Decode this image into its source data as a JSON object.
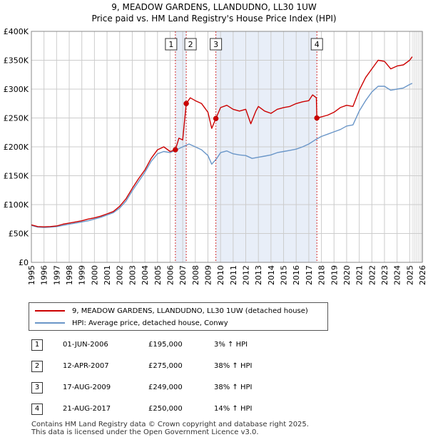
{
  "title_line1": "9, MEADOW GARDENS, LLANDUDNO, LL30 1UW",
  "title_line2": "Price paid vs. HM Land Registry's House Price Index (HPI)",
  "colors": {
    "property": "#cc0000",
    "hpi": "#6a96c8",
    "band": "#e8eef8",
    "grid": "#cccccc"
  },
  "chart_data": {
    "type": "line",
    "title": "Price paid vs. HM Land Registry's House Price Index (HPI)",
    "xlabel": "",
    "ylabel": "",
    "xlim": [
      1995,
      2026
    ],
    "ylim": [
      0,
      400000
    ],
    "y_ticks": [
      {
        "value": 0,
        "label": "£0"
      },
      {
        "value": 50000,
        "label": "£50K"
      },
      {
        "value": 100000,
        "label": "£100K"
      },
      {
        "value": 150000,
        "label": "£150K"
      },
      {
        "value": 200000,
        "label": "£200K"
      },
      {
        "value": 250000,
        "label": "£250K"
      },
      {
        "value": 300000,
        "label": "£300K"
      },
      {
        "value": 350000,
        "label": "£350K"
      },
      {
        "value": 400000,
        "label": "£400K"
      }
    ],
    "x_ticks": [
      "1995",
      "1996",
      "1997",
      "1998",
      "1999",
      "2000",
      "2001",
      "2002",
      "2003",
      "2004",
      "2005",
      "2006",
      "2007",
      "2008",
      "2009",
      "2010",
      "2011",
      "2012",
      "2013",
      "2014",
      "2015",
      "2016",
      "2017",
      "2018",
      "2019",
      "2020",
      "2021",
      "2022",
      "2023",
      "2024",
      "2025",
      "2026"
    ],
    "grid": true,
    "bands": [
      [
        2006.42,
        2007.28
      ],
      [
        2009.63,
        2017.64
      ]
    ],
    "series": [
      {
        "name": "9, MEADOW GARDENS, LLANDUDNO, LL30 1UW (detached house)",
        "color": "#cc0000",
        "points": [
          [
            1995,
            65000
          ],
          [
            1995.5,
            62000
          ],
          [
            1996,
            61500
          ],
          [
            1996.5,
            62000
          ],
          [
            1997,
            63000
          ],
          [
            1997.5,
            66000
          ],
          [
            1998,
            68000
          ],
          [
            1998.5,
            70000
          ],
          [
            1999,
            72000
          ],
          [
            1999.5,
            75000
          ],
          [
            2000,
            77000
          ],
          [
            2000.5,
            80000
          ],
          [
            2001,
            84000
          ],
          [
            2001.5,
            88000
          ],
          [
            2002,
            97000
          ],
          [
            2002.5,
            110000
          ],
          [
            2003,
            128000
          ],
          [
            2003.5,
            145000
          ],
          [
            2004,
            160000
          ],
          [
            2004.5,
            180000
          ],
          [
            2005,
            195000
          ],
          [
            2005.5,
            200000
          ],
          [
            2006,
            192000
          ],
          [
            2006.42,
            195000
          ],
          [
            2006.7,
            215000
          ],
          [
            2007,
            212000
          ],
          [
            2007.28,
            275000
          ],
          [
            2007.6,
            285000
          ],
          [
            2008,
            280000
          ],
          [
            2008.5,
            275000
          ],
          [
            2009,
            260000
          ],
          [
            2009.3,
            232000
          ],
          [
            2009.63,
            249000
          ],
          [
            2010,
            268000
          ],
          [
            2010.5,
            272000
          ],
          [
            2011,
            265000
          ],
          [
            2011.5,
            262000
          ],
          [
            2012,
            265000
          ],
          [
            2012.4,
            240000
          ],
          [
            2012.8,
            262000
          ],
          [
            2013,
            270000
          ],
          [
            2013.5,
            262000
          ],
          [
            2014,
            258000
          ],
          [
            2014.5,
            265000
          ],
          [
            2015,
            268000
          ],
          [
            2015.5,
            270000
          ],
          [
            2016,
            275000
          ],
          [
            2016.5,
            278000
          ],
          [
            2017,
            280000
          ],
          [
            2017.3,
            290000
          ],
          [
            2017.6,
            285000
          ],
          [
            2017.64,
            250000
          ],
          [
            2018,
            252000
          ],
          [
            2018.5,
            255000
          ],
          [
            2019,
            260000
          ],
          [
            2019.5,
            268000
          ],
          [
            2020,
            272000
          ],
          [
            2020.5,
            270000
          ],
          [
            2021,
            298000
          ],
          [
            2021.5,
            320000
          ],
          [
            2022,
            335000
          ],
          [
            2022.5,
            350000
          ],
          [
            2023,
            348000
          ],
          [
            2023.5,
            335000
          ],
          [
            2024,
            340000
          ],
          [
            2024.5,
            342000
          ],
          [
            2025,
            350000
          ],
          [
            2025.2,
            356000
          ]
        ]
      },
      {
        "name": "HPI: Average price, detached house, Conwy",
        "color": "#6a96c8",
        "points": [
          [
            1995,
            64000
          ],
          [
            1995.5,
            61000
          ],
          [
            1996,
            60500
          ],
          [
            1996.5,
            61000
          ],
          [
            1997,
            62000
          ],
          [
            1997.5,
            64000
          ],
          [
            1998,
            66000
          ],
          [
            1998.5,
            68000
          ],
          [
            1999,
            70000
          ],
          [
            1999.5,
            72000
          ],
          [
            2000,
            75000
          ],
          [
            2000.5,
            78000
          ],
          [
            2001,
            82000
          ],
          [
            2001.5,
            86000
          ],
          [
            2002,
            94000
          ],
          [
            2002.5,
            106000
          ],
          [
            2003,
            124000
          ],
          [
            2003.5,
            140000
          ],
          [
            2004,
            156000
          ],
          [
            2004.5,
            175000
          ],
          [
            2005,
            188000
          ],
          [
            2005.5,
            192000
          ],
          [
            2006,
            190000
          ],
          [
            2006.5,
            195000
          ],
          [
            2007,
            200000
          ],
          [
            2007.5,
            205000
          ],
          [
            2008,
            200000
          ],
          [
            2008.5,
            195000
          ],
          [
            2009,
            185000
          ],
          [
            2009.3,
            170000
          ],
          [
            2009.7,
            180000
          ],
          [
            2010,
            190000
          ],
          [
            2010.5,
            193000
          ],
          [
            2011,
            188000
          ],
          [
            2011.5,
            186000
          ],
          [
            2012,
            185000
          ],
          [
            2012.5,
            180000
          ],
          [
            2013,
            182000
          ],
          [
            2013.5,
            184000
          ],
          [
            2014,
            186000
          ],
          [
            2014.5,
            190000
          ],
          [
            2015,
            192000
          ],
          [
            2015.5,
            194000
          ],
          [
            2016,
            196000
          ],
          [
            2016.5,
            200000
          ],
          [
            2017,
            205000
          ],
          [
            2017.5,
            212000
          ],
          [
            2018,
            218000
          ],
          [
            2018.5,
            222000
          ],
          [
            2019,
            226000
          ],
          [
            2019.5,
            230000
          ],
          [
            2020,
            236000
          ],
          [
            2020.5,
            238000
          ],
          [
            2021,
            262000
          ],
          [
            2021.5,
            280000
          ],
          [
            2022,
            295000
          ],
          [
            2022.5,
            305000
          ],
          [
            2023,
            305000
          ],
          [
            2023.5,
            298000
          ],
          [
            2024,
            300000
          ],
          [
            2024.5,
            302000
          ],
          [
            2025,
            308000
          ],
          [
            2025.2,
            310000
          ]
        ]
      }
    ],
    "sales": [
      {
        "num": "1",
        "x": 2006.42,
        "price": 195000
      },
      {
        "num": "2",
        "x": 2007.28,
        "price": 275000
      },
      {
        "num": "3",
        "x": 2009.63,
        "price": 249000
      },
      {
        "num": "4",
        "x": 2017.64,
        "price": 250000
      }
    ]
  },
  "legend": {
    "property_label": "9, MEADOW GARDENS, LLANDUDNO, LL30 1UW (detached house)",
    "hpi_label": "HPI: Average price, detached house, Conwy"
  },
  "transactions": [
    {
      "num": "1",
      "date": "01-JUN-2006",
      "price": "£195,000",
      "hpi": "3% ↑ HPI"
    },
    {
      "num": "2",
      "date": "12-APR-2007",
      "price": "£275,000",
      "hpi": "38% ↑ HPI"
    },
    {
      "num": "3",
      "date": "17-AUG-2009",
      "price": "£249,000",
      "hpi": "38% ↑ HPI"
    },
    {
      "num": "4",
      "date": "21-AUG-2017",
      "price": "£250,000",
      "hpi": "14% ↑ HPI"
    }
  ],
  "footer": {
    "line1": "Contains HM Land Registry data © Crown copyright and database right 2025.",
    "line2": "This data is licensed under the Open Government Licence v3.0."
  }
}
